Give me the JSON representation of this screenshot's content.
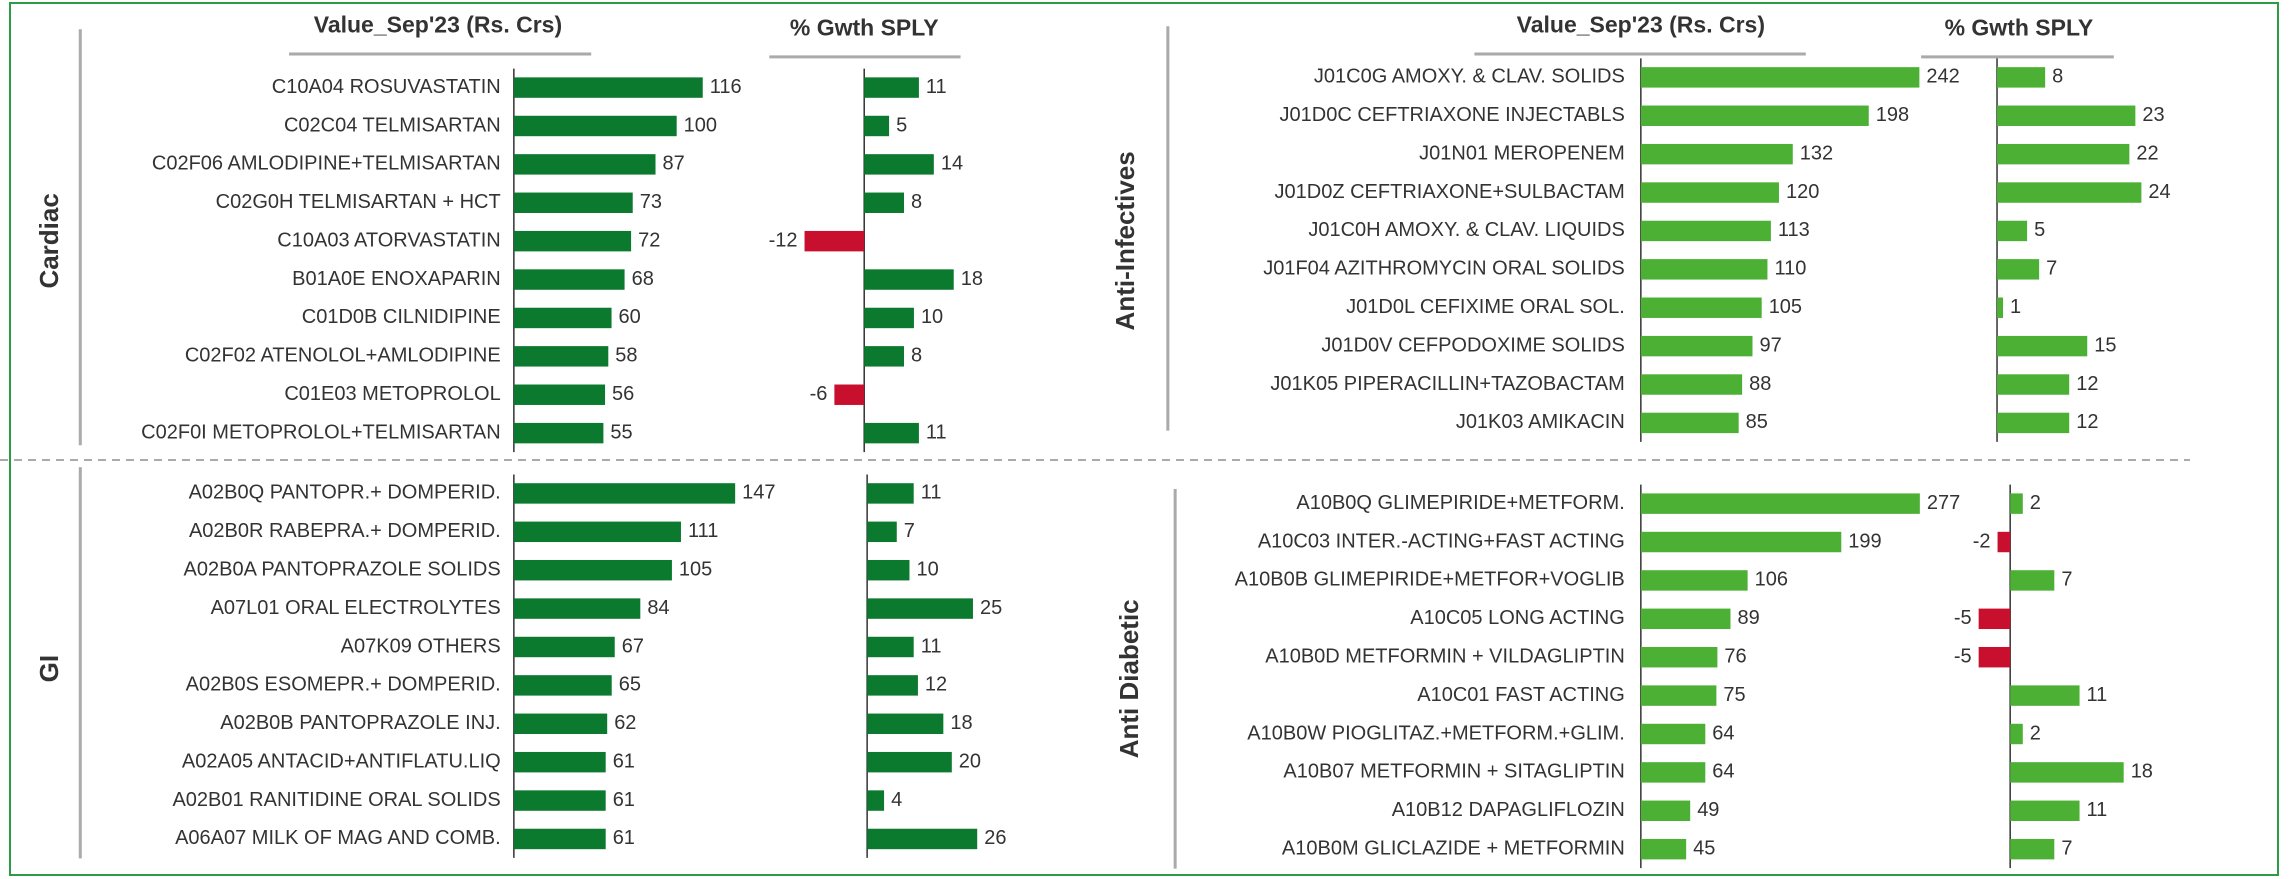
{
  "chart_data": [
    {
      "type": "bar",
      "title": "Cardiac",
      "categories": [
        "C10A04  ROSUVASTATIN",
        "C02C04  TELMISARTAN",
        "C02F06  AMLODIPINE+TELMISARTAN",
        "C02G0H  TELMISARTAN + HCT",
        "C10A03  ATORVASTATIN",
        "B01A0E  ENOXAPARIN",
        "C01D0B  CILNIDIPINE",
        "C02F02  ATENOLOL+AMLODIPINE",
        "C01E03  METOPROLOL",
        "C02F0I  METOPROLOL+TELMISARTAN"
      ],
      "series": [
        {
          "name": "Value_Sep'23 (Rs. Crs)",
          "color": "#0b7a2e",
          "values": [
            116,
            100,
            87,
            73,
            72,
            68,
            60,
            58,
            56,
            55
          ]
        },
        {
          "name": "% Gwth SPLY",
          "color": "#0b7a2e",
          "negative_color": "#c8102e",
          "values": [
            11,
            5,
            14,
            8,
            -12,
            18,
            10,
            8,
            -6,
            11
          ]
        }
      ],
      "xlim": [
        0,
        130
      ],
      "x2lim": [
        -12,
        20
      ]
    },
    {
      "type": "bar",
      "title": "Anti-Infectives",
      "categories": [
        "J01C0G  AMOXY. & CLAV. SOLIDS",
        "J01D0C  CEFTRIAXONE INJECTABLS",
        "J01N01  MEROPENEM",
        "J01D0Z  CEFTRIAXONE+SULBACTAM",
        "J01C0H  AMOXY. & CLAV. LIQUIDS",
        "J01F04  AZITHROMYCIN ORAL SOLIDS",
        "J01D0L  CEFIXIME ORAL SOL.",
        "J01D0V  CEFPODOXIME SOLIDS",
        "J01K05  PIPERACILLIN+TAZOBACTAM",
        "J01K03  AMIKACIN"
      ],
      "series": [
        {
          "name": "Value_Sep'23 (Rs. Crs)",
          "color": "#4cb034",
          "values": [
            242,
            198,
            132,
            120,
            113,
            110,
            105,
            97,
            88,
            85
          ]
        },
        {
          "name": "% Gwth SPLY",
          "color": "#4cb034",
          "negative_color": "#c8102e",
          "values": [
            8,
            23,
            22,
            24,
            5,
            7,
            1,
            15,
            12,
            12
          ]
        }
      ],
      "xlim": [
        0,
        260
      ],
      "x2lim": [
        0,
        25
      ]
    },
    {
      "type": "bar",
      "title": "GI",
      "categories": [
        "A02B0Q  PANTOPR.+ DOMPERID.",
        "A02B0R  RABEPRA.+ DOMPERID.",
        "A02B0A  PANTOPRAZOLE SOLIDS",
        "A07L01  ORAL ELECTROLYTES",
        "A07K09  OTHERS",
        "A02B0S  ESOMEPR.+ DOMPERID.",
        "A02B0B  PANTOPRAZOLE INJ.",
        "A02A05  ANTACID+ANTIFLATU.LIQ",
        "A02B01  RANITIDINE ORAL SOLIDS",
        "A06A07  MILK OF MAG AND COMB."
      ],
      "series": [
        {
          "color": "#0b7a2e",
          "values": [
            147,
            111,
            105,
            84,
            67,
            65,
            62,
            61,
            61,
            61
          ]
        },
        {
          "color": "#0b7a2e",
          "negative_color": "#c8102e",
          "values": [
            11,
            7,
            10,
            25,
            11,
            12,
            18,
            20,
            4,
            26
          ]
        }
      ],
      "xlim": [
        0,
        160
      ],
      "x2lim": [
        0,
        30
      ]
    },
    {
      "type": "bar",
      "title": "Anti Diabetic",
      "categories": [
        "A10B0Q  GLIMEPIRIDE+METFORM.",
        "A10C03  INTER.-ACTING+FAST ACTING",
        "A10B0B  GLIMEPIRIDE+METFOR+VOGLIB",
        "A10C05  LONG ACTING",
        "A10B0D  METFORMIN + VILDAGLIPTIN",
        "A10C01  FAST ACTING",
        "A10B0W  PIOGLITAZ.+METFORM.+GLIM.",
        "A10B07  METFORMIN + SITAGLIPTIN",
        "A10B12  DAPAGLIFLOZIN",
        "A10B0M  GLICLAZIDE + METFORMIN"
      ],
      "series": [
        {
          "color": "#4cb034",
          "values": [
            277,
            199,
            106,
            89,
            76,
            75,
            64,
            64,
            49,
            45
          ]
        },
        {
          "color": "#4cb034",
          "negative_color": "#c8102e",
          "values": [
            2,
            -2,
            7,
            -5,
            -5,
            11,
            2,
            18,
            11,
            7
          ]
        }
      ],
      "xlim": [
        0,
        300
      ],
      "x2lim": [
        -5,
        20
      ]
    }
  ]
}
